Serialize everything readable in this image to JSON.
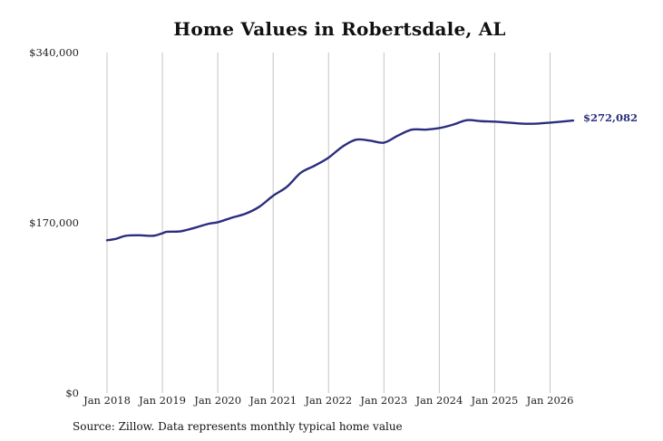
{
  "chart_data": {
    "type": "line",
    "title": "Home Values in Robertsdale, AL",
    "source": "Source: Zillow. Data represents monthly typical home value",
    "xlabel": "",
    "ylabel": "",
    "ylim": [
      0,
      340000
    ],
    "y_ticks": [
      {
        "value": 0,
        "label": "$0"
      },
      {
        "value": 170000,
        "label": "$170,000"
      },
      {
        "value": 340000,
        "label": "$340,000"
      }
    ],
    "xlim": [
      "2018-01",
      "2026-06"
    ],
    "x_ticks": [
      {
        "date": "2018-01",
        "label": "Jan 2018"
      },
      {
        "date": "2019-01",
        "label": "Jan 2019"
      },
      {
        "date": "2020-01",
        "label": "Jan 2020"
      },
      {
        "date": "2021-01",
        "label": "Jan 2021"
      },
      {
        "date": "2022-01",
        "label": "Jan 2022"
      },
      {
        "date": "2023-01",
        "label": "Jan 2023"
      },
      {
        "date": "2024-01",
        "label": "Jan 2024"
      },
      {
        "date": "2025-01",
        "label": "Jan 2025"
      },
      {
        "date": "2026-01",
        "label": "Jan 2026"
      }
    ],
    "grid": "vertical",
    "line_color": "#2b2d7e",
    "last_value_label": "$272,082",
    "series": [
      {
        "points": [
          {
            "x": "2018-01",
            "y": 152500
          },
          {
            "x": "2018-03",
            "y": 154000
          },
          {
            "x": "2018-05",
            "y": 157000
          },
          {
            "x": "2018-08",
            "y": 157500
          },
          {
            "x": "2018-11",
            "y": 157000
          },
          {
            "x": "2019-01",
            "y": 159500
          },
          {
            "x": "2019-02",
            "y": 161000
          },
          {
            "x": "2019-05",
            "y": 161500
          },
          {
            "x": "2019-08",
            "y": 165000
          },
          {
            "x": "2019-11",
            "y": 169000
          },
          {
            "x": "2020-01",
            "y": 170500
          },
          {
            "x": "2020-04",
            "y": 175000
          },
          {
            "x": "2020-07",
            "y": 179000
          },
          {
            "x": "2020-10",
            "y": 186000
          },
          {
            "x": "2021-01",
            "y": 197000
          },
          {
            "x": "2021-04",
            "y": 206000
          },
          {
            "x": "2021-07",
            "y": 220000
          },
          {
            "x": "2021-10",
            "y": 227000
          },
          {
            "x": "2022-01",
            "y": 235000
          },
          {
            "x": "2022-04",
            "y": 246000
          },
          {
            "x": "2022-07",
            "y": 253000
          },
          {
            "x": "2022-10",
            "y": 252000
          },
          {
            "x": "2023-01",
            "y": 250000
          },
          {
            "x": "2023-04",
            "y": 257000
          },
          {
            "x": "2023-07",
            "y": 263000
          },
          {
            "x": "2023-10",
            "y": 263000
          },
          {
            "x": "2024-01",
            "y": 264500
          },
          {
            "x": "2024-04",
            "y": 268000
          },
          {
            "x": "2024-07",
            "y": 272500
          },
          {
            "x": "2024-10",
            "y": 271500
          },
          {
            "x": "2025-01",
            "y": 271000
          },
          {
            "x": "2025-04",
            "y": 270000
          },
          {
            "x": "2025-07",
            "y": 269000
          },
          {
            "x": "2025-10",
            "y": 269000
          },
          {
            "x": "2026-01",
            "y": 270000
          },
          {
            "x": "2026-06",
            "y": 272082
          }
        ]
      }
    ]
  }
}
